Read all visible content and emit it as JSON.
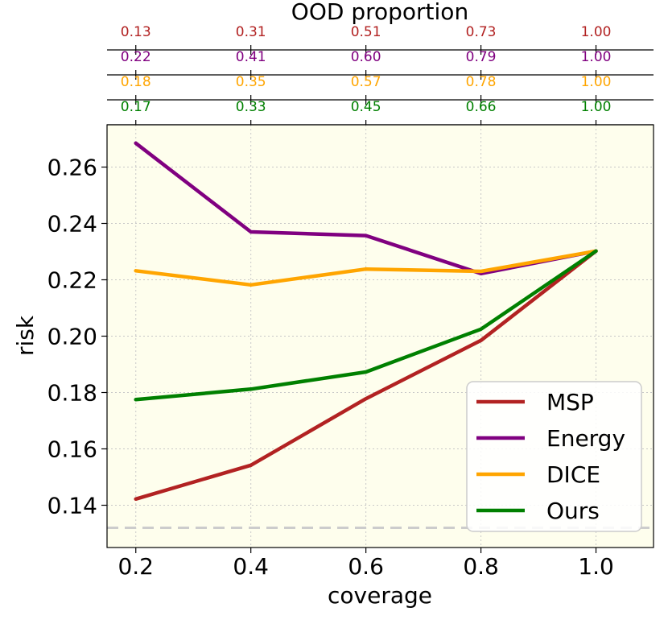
{
  "chart_data": {
    "type": "line",
    "xlabel": "coverage",
    "ylabel": "risk",
    "top_axis_label": "OOD proportion",
    "x": [
      0.2,
      0.4,
      0.6,
      0.8,
      1.0
    ],
    "x_tick_labels": [
      "0.2",
      "0.4",
      "0.6",
      "0.8",
      "1.0"
    ],
    "xlim": [
      0.15,
      1.1
    ],
    "ylim": [
      0.125,
      0.275
    ],
    "y_ticks": [
      0.14,
      0.16,
      0.18,
      0.2,
      0.22,
      0.24,
      0.26
    ],
    "y_tick_labels": [
      "0.14",
      "0.16",
      "0.18",
      "0.20",
      "0.22",
      "0.24",
      "0.26"
    ],
    "grid": true,
    "background": "#fefeed",
    "baseline": {
      "value": 0.132,
      "style": "dashed",
      "color": "#cccccc"
    },
    "legend_position": "lower-right",
    "series": [
      {
        "name": "MSP",
        "color": "#b22222",
        "values": [
          0.1422,
          0.1542,
          0.1778,
          0.1985,
          0.2302
        ],
        "ood_proportion": [
          "0.13",
          "0.31",
          "0.51",
          "0.73",
          "1.00"
        ]
      },
      {
        "name": "Energy",
        "color": "#800080",
        "values": [
          0.2685,
          0.237,
          0.2357,
          0.2222,
          0.2302
        ],
        "ood_proportion": [
          "0.22",
          "0.41",
          "0.60",
          "0.79",
          "1.00"
        ]
      },
      {
        "name": "DICE",
        "color": "#ffa500",
        "values": [
          0.2232,
          0.2182,
          0.2238,
          0.223,
          0.2302
        ],
        "ood_proportion": [
          "0.18",
          "0.35",
          "0.57",
          "0.78",
          "1.00"
        ]
      },
      {
        "name": "Ours",
        "color": "#008000",
        "values": [
          0.1775,
          0.1812,
          0.1873,
          0.2025,
          0.2302
        ],
        "ood_proportion": [
          "0.17",
          "0.33",
          "0.45",
          "0.66",
          "1.00"
        ]
      }
    ]
  }
}
